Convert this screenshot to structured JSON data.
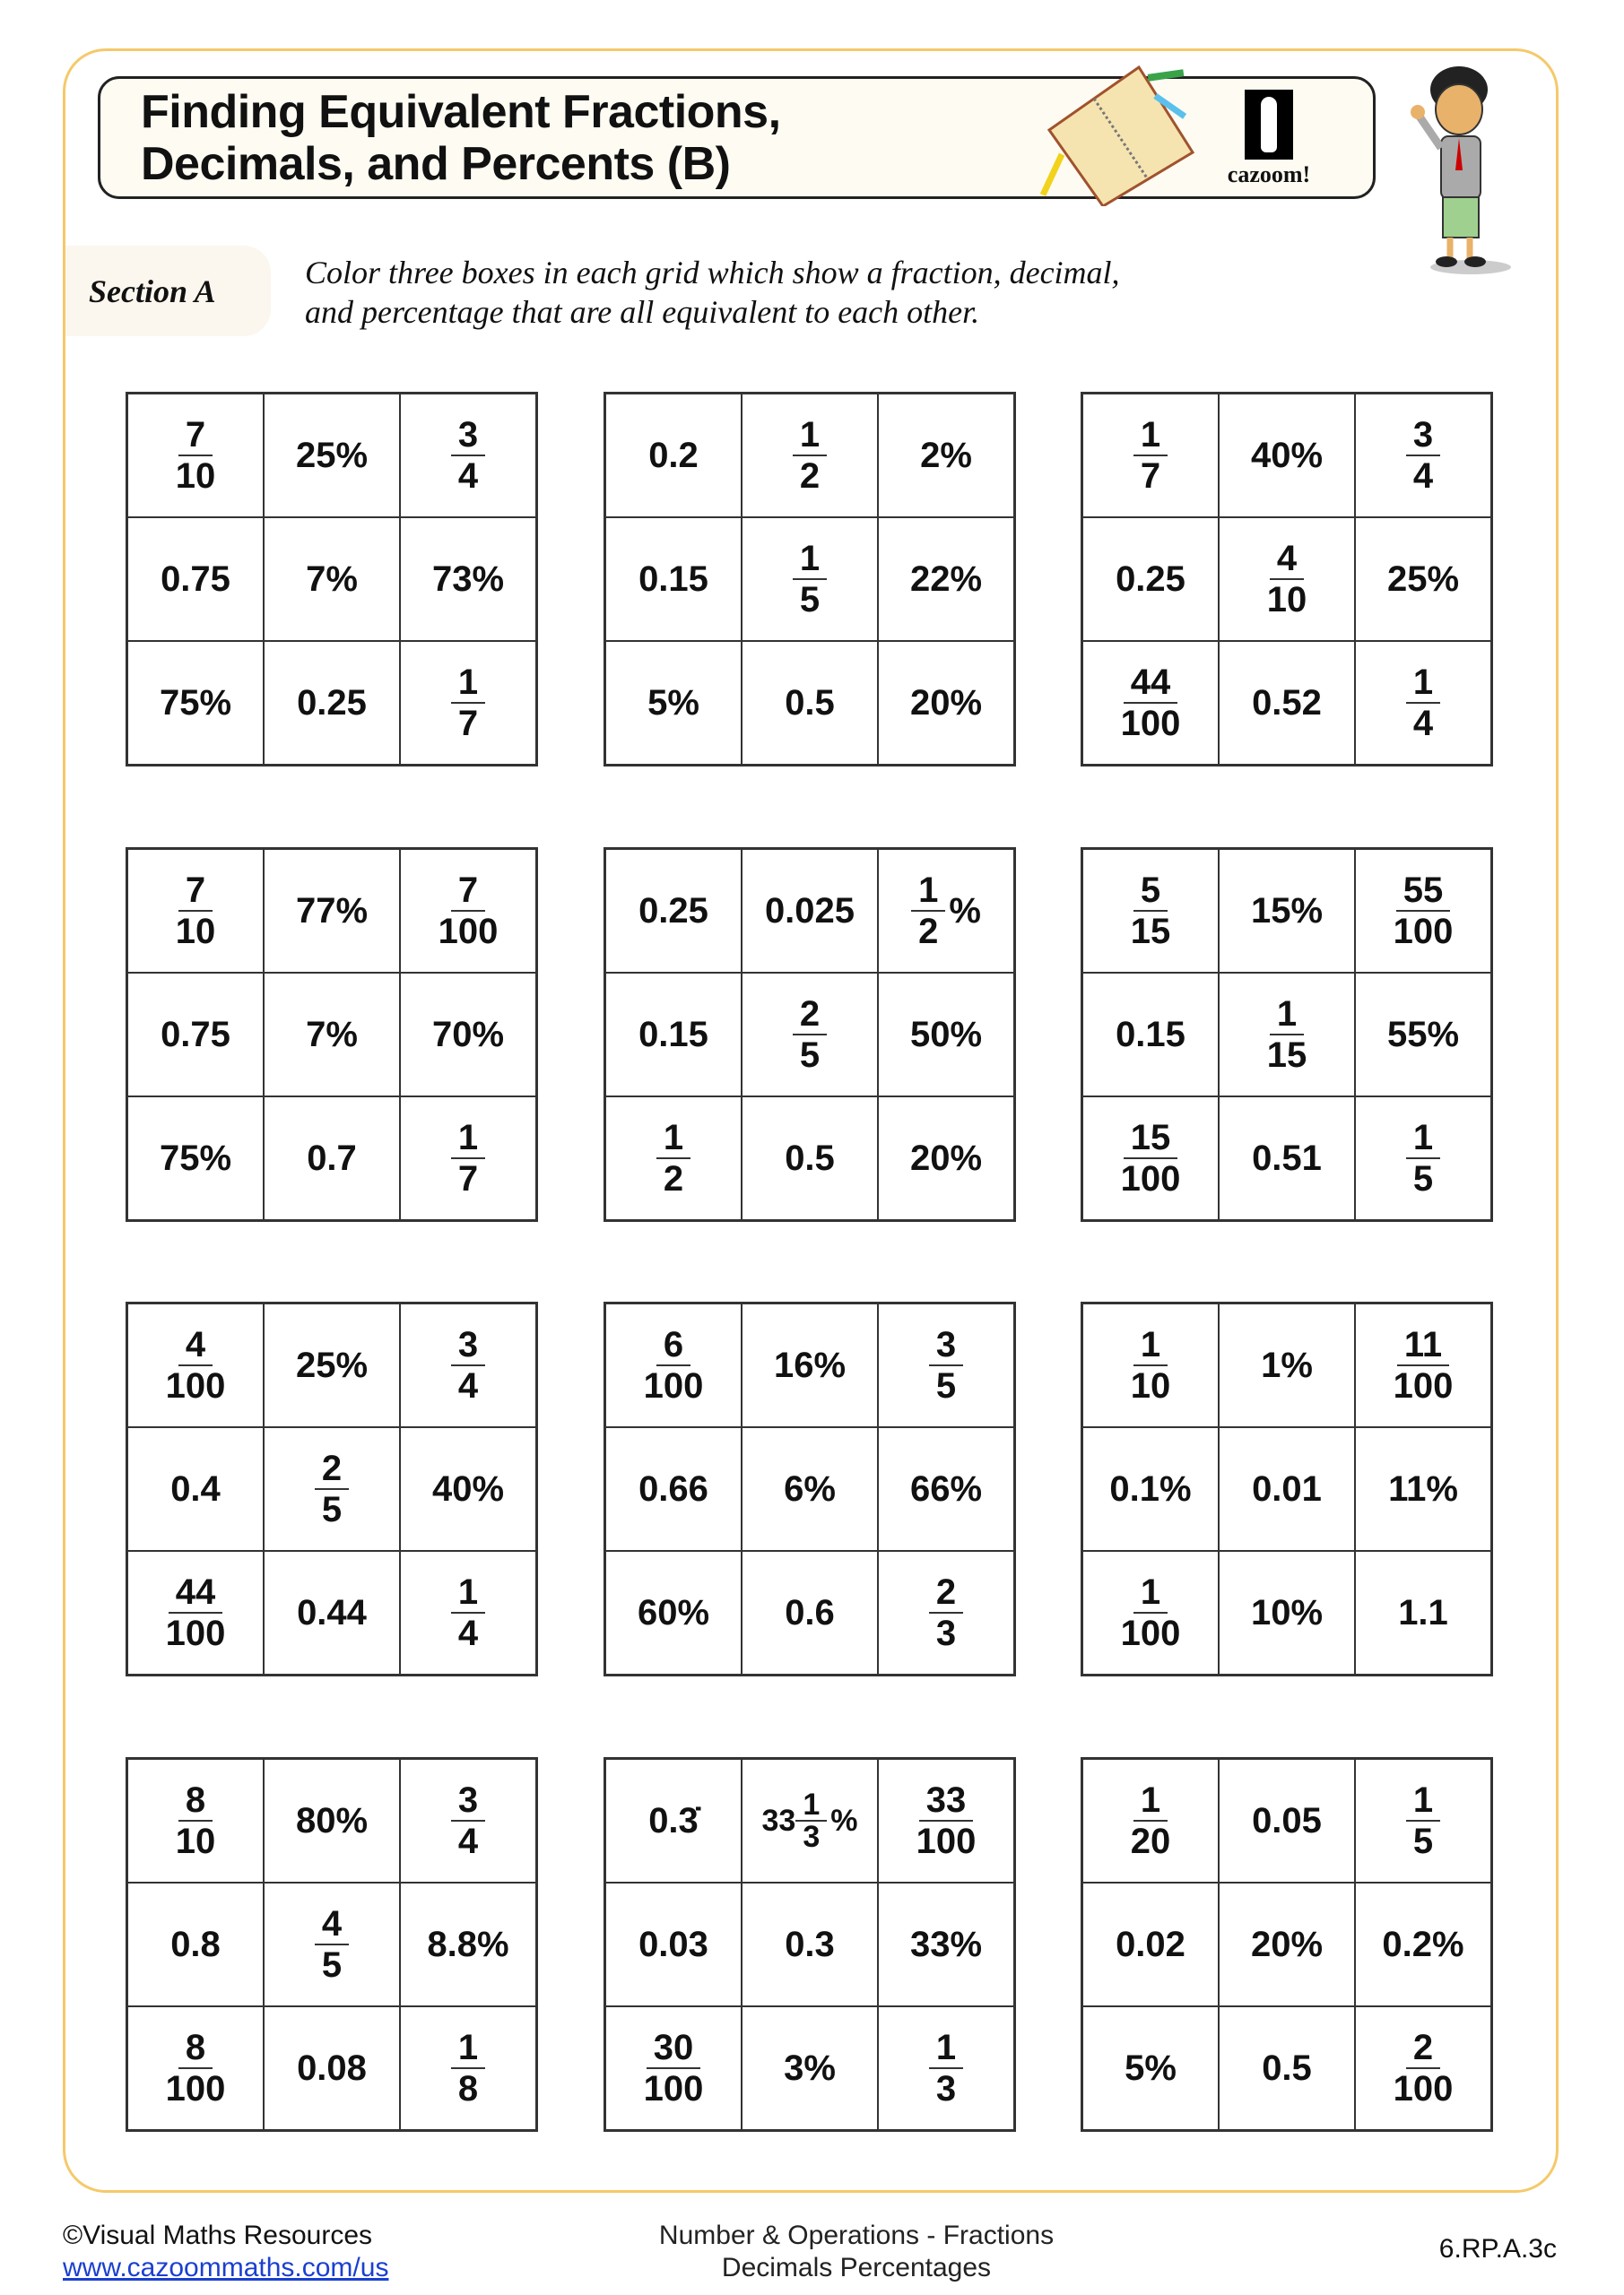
{
  "header": {
    "title_line1": "Finding Equivalent Fractions,",
    "title_line2": "Decimals, and Percents (B)",
    "logo_text": "cazoom!"
  },
  "section": {
    "label": "Section A",
    "instruction_line1": "Color three boxes in each grid which show a fraction, decimal,",
    "instruction_line2": "and percentage that are all equivalent to each other."
  },
  "colors": {
    "frame_border": "#f5c96a",
    "title_bg": "#fdfbf2",
    "link": "#1a3fd0"
  },
  "grids": [
    [
      [
        {
          "num": "7",
          "den": "10"
        },
        "25%",
        {
          "num": "3",
          "den": "4"
        }
      ],
      [
        "0.75",
        "7%",
        "73%"
      ],
      [
        "75%",
        "0.25",
        {
          "num": "1",
          "den": "7"
        }
      ]
    ],
    [
      [
        "0.2",
        {
          "num": "1",
          "den": "2"
        },
        "2%"
      ],
      [
        "0.15",
        {
          "num": "1",
          "den": "5"
        },
        "22%"
      ],
      [
        "5%",
        "0.5",
        "20%"
      ]
    ],
    [
      [
        {
          "num": "1",
          "den": "7"
        },
        "40%",
        {
          "num": "3",
          "den": "4"
        }
      ],
      [
        "0.25",
        {
          "num": "4",
          "den": "10"
        },
        "25%"
      ],
      [
        {
          "num": "44",
          "den": "100"
        },
        "0.52",
        {
          "num": "1",
          "den": "4"
        }
      ]
    ],
    [
      [
        {
          "num": "7",
          "den": "10"
        },
        "77%",
        {
          "num": "7",
          "den": "100"
        }
      ],
      [
        "0.75",
        "7%",
        "70%"
      ],
      [
        "75%",
        "0.7",
        {
          "num": "1",
          "den": "7"
        }
      ]
    ],
    [
      [
        "0.25",
        "0.025",
        {
          "num": "1",
          "den": "2",
          "suffix": "%"
        }
      ],
      [
        "0.15",
        {
          "num": "2",
          "den": "5"
        },
        "50%"
      ],
      [
        {
          "num": "1",
          "den": "2"
        },
        "0.5",
        "20%"
      ]
    ],
    [
      [
        {
          "num": "5",
          "den": "15"
        },
        "15%",
        {
          "num": "55",
          "den": "100"
        }
      ],
      [
        "0.15",
        {
          "num": "1",
          "den": "15"
        },
        "55%"
      ],
      [
        {
          "num": "15",
          "den": "100"
        },
        "0.51",
        {
          "num": "1",
          "den": "5"
        }
      ]
    ],
    [
      [
        {
          "num": "4",
          "den": "100"
        },
        "25%",
        {
          "num": "3",
          "den": "4"
        }
      ],
      [
        "0.4",
        {
          "num": "2",
          "den": "5"
        },
        "40%"
      ],
      [
        {
          "num": "44",
          "den": "100"
        },
        "0.44",
        {
          "num": "1",
          "den": "4"
        }
      ]
    ],
    [
      [
        {
          "num": "6",
          "den": "100"
        },
        "16%",
        {
          "num": "3",
          "den": "5"
        }
      ],
      [
        "0.66",
        "6%",
        "66%"
      ],
      [
        "60%",
        "0.6",
        {
          "num": "2",
          "den": "3"
        }
      ]
    ],
    [
      [
        {
          "num": "1",
          "den": "10"
        },
        "1%",
        {
          "num": "11",
          "den": "100"
        }
      ],
      [
        "0.1%",
        "0.01",
        "11%"
      ],
      [
        {
          "num": "1",
          "den": "100"
        },
        "10%",
        "1.1"
      ]
    ],
    [
      [
        {
          "num": "8",
          "den": "10"
        },
        "80%",
        {
          "num": "3",
          "den": "4"
        }
      ],
      [
        "0.8",
        {
          "num": "4",
          "den": "5"
        },
        "8.8%"
      ],
      [
        {
          "num": "8",
          "den": "100"
        },
        "0.08",
        {
          "num": "1",
          "den": "8"
        }
      ]
    ],
    [
      [
        "0.3̇",
        {
          "whole": "33",
          "num": "1",
          "den": "3",
          "suffix": "%"
        },
        {
          "num": "33",
          "den": "100"
        }
      ],
      [
        "0.03",
        "0.3",
        "33%"
      ],
      [
        {
          "num": "30",
          "den": "100"
        },
        "3%",
        {
          "num": "1",
          "den": "3"
        }
      ]
    ],
    [
      [
        {
          "num": "1",
          "den": "20"
        },
        "0.05",
        {
          "num": "1",
          "den": "5"
        }
      ],
      [
        "0.02",
        "20%",
        "0.2%"
      ],
      [
        "5%",
        "0.5",
        {
          "num": "2",
          "den": "100"
        }
      ]
    ]
  ],
  "footer": {
    "copyright": "©Visual Maths Resources",
    "url": "www.cazoommaths.com/us",
    "topic_line1": "Number & Operations - Fractions",
    "topic_line2": "Decimals Percentages",
    "standard": "6.RP.A.3c"
  }
}
